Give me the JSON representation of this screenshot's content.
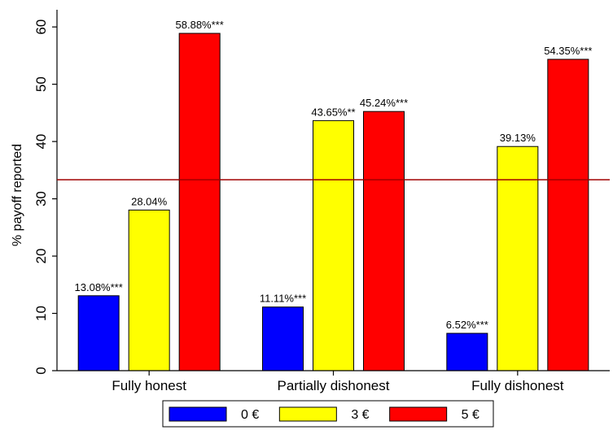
{
  "chart_data": {
    "type": "bar",
    "categories": [
      "Fully honest",
      "Partially dishonest",
      "Fully dishonest"
    ],
    "series": [
      {
        "name": "0 €",
        "color": "#0000ff",
        "values": [
          13.08,
          11.11,
          6.52
        ],
        "labels": [
          "13.08%***",
          "11.11%***",
          "6.52%***"
        ]
      },
      {
        "name": "3 €",
        "color": "#ffff00",
        "values": [
          28.04,
          43.65,
          39.13
        ],
        "labels": [
          "28.04%",
          "43.65%**",
          "39.13%"
        ]
      },
      {
        "name": "5 €",
        "color": "#ff0000",
        "values": [
          58.88,
          45.24,
          54.35
        ],
        "labels": [
          "58.88%***",
          "45.24%***",
          "54.35%***"
        ]
      }
    ],
    "ylabel": "% payoff reported",
    "xlabel": "",
    "title": "",
    "ylim": [
      0,
      63
    ],
    "yticks": [
      "0",
      "10",
      "20",
      "30",
      "40",
      "50",
      "60"
    ],
    "reference_line": {
      "value": 33.33,
      "color": "#a00000"
    },
    "grid": false,
    "legend_position": "bottom"
  }
}
